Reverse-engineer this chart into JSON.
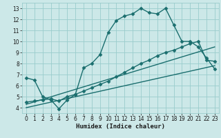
{
  "xlabel": "Humidex (Indice chaleur)",
  "bg_color": "#cce8e8",
  "grid_color": "#99cccc",
  "line_color": "#1a6e6e",
  "xlim": [
    -0.5,
    23.5
  ],
  "ylim": [
    3.5,
    13.5
  ],
  "xticks": [
    0,
    1,
    2,
    3,
    4,
    5,
    6,
    7,
    8,
    9,
    10,
    11,
    12,
    13,
    14,
    15,
    16,
    17,
    18,
    19,
    20,
    21,
    22,
    23
  ],
  "yticks": [
    4,
    5,
    6,
    7,
    8,
    9,
    10,
    11,
    12,
    13
  ],
  "series": [
    {
      "x": [
        0,
        1,
        2,
        3,
        4,
        5,
        6,
        7,
        8,
        9,
        10,
        11,
        12,
        13,
        14,
        15,
        16,
        17,
        18,
        19,
        20,
        21,
        22,
        23
      ],
      "y": [
        6.7,
        6.5,
        5.0,
        4.7,
        3.9,
        4.7,
        5.2,
        7.6,
        8.0,
        8.8,
        10.8,
        11.9,
        12.3,
        12.5,
        13.0,
        12.6,
        12.5,
        13.0,
        11.5,
        10.0,
        10.0,
        9.5,
        8.5,
        7.5
      ],
      "marker": "D",
      "markersize": 2.5,
      "linewidth": 1.0
    },
    {
      "x": [
        0,
        1,
        2,
        3,
        4,
        5,
        6,
        7,
        8,
        9,
        10,
        11,
        12,
        13,
        14,
        15,
        16,
        17,
        18,
        19,
        20,
        21,
        22,
        23
      ],
      "y": [
        4.5,
        4.6,
        4.7,
        4.8,
        4.6,
        5.0,
        5.2,
        5.5,
        5.8,
        6.1,
        6.4,
        6.8,
        7.2,
        7.6,
        8.0,
        8.3,
        8.7,
        9.0,
        9.2,
        9.5,
        9.8,
        10.0,
        8.3,
        8.2
      ],
      "marker": "D",
      "markersize": 2.5,
      "linewidth": 1.0
    },
    {
      "x": [
        0,
        23
      ],
      "y": [
        4.3,
        9.5
      ],
      "marker": null,
      "markersize": 0,
      "linewidth": 1.0
    },
    {
      "x": [
        0,
        23
      ],
      "y": [
        4.0,
        7.8
      ],
      "marker": null,
      "markersize": 0,
      "linewidth": 1.0
    }
  ]
}
